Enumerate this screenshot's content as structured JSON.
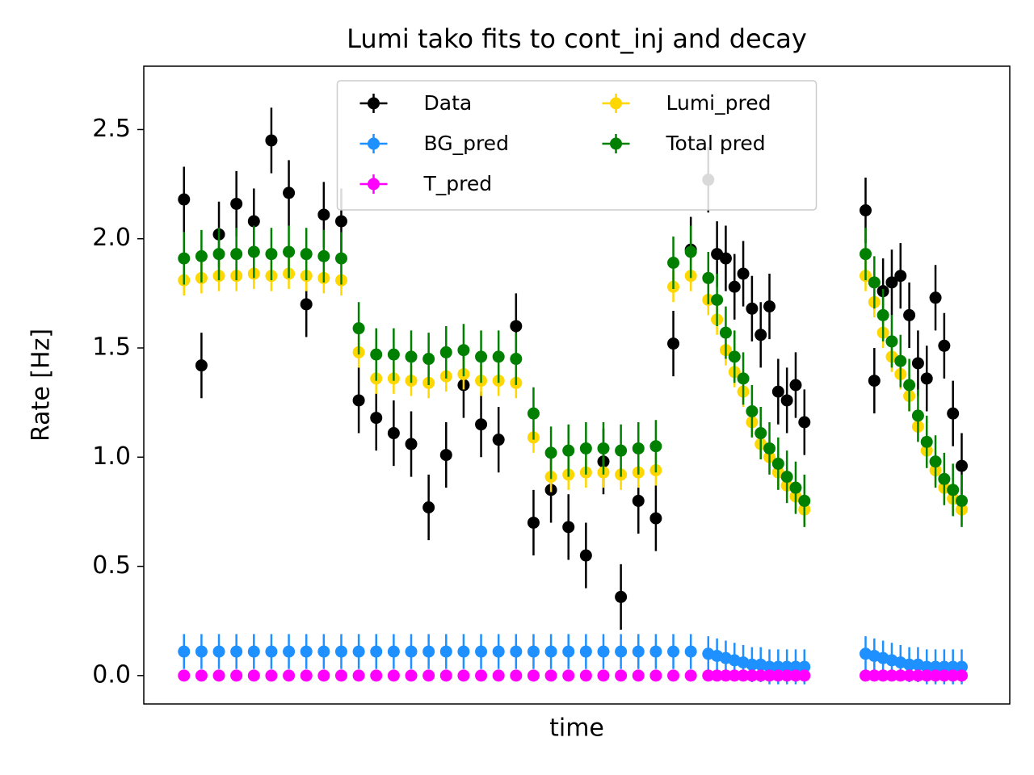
{
  "chart_data": {
    "type": "errorbar",
    "title": "Lumi tako fits to cont_inj and decay",
    "x_label": "time",
    "y_label": "Rate [Hz]",
    "xlim": [
      -4.6,
      94.5
    ],
    "ylim": [
      -0.13,
      2.79
    ],
    "yticks": [
      {
        "value": 0,
        "label": "0.0"
      },
      0.5,
      {
        "value": 1,
        "label": "1.0"
      },
      1.5,
      {
        "value": 2,
        "label": "2.0"
      },
      2.5
    ],
    "grid": false,
    "legend": "upper center",
    "legend_columns": 2,
    "x": [
      0,
      2,
      4,
      6,
      8,
      10,
      12,
      14,
      16,
      18,
      20,
      22,
      24,
      26,
      28,
      30,
      32,
      34,
      36,
      38,
      40,
      42,
      44,
      46,
      48,
      50,
      52,
      54,
      56,
      58,
      60,
      61,
      62,
      63,
      64,
      65,
      66,
      67,
      68,
      69,
      70,
      71,
      78,
      79,
      80,
      81,
      82,
      83,
      84,
      85,
      86,
      87,
      88,
      89
    ],
    "series": [
      {
        "name": "Data",
        "color": "#000000",
        "yerr": 0.15,
        "values": [
          2.18,
          1.42,
          2.02,
          2.16,
          2.08,
          2.45,
          2.21,
          1.7,
          2.11,
          2.08,
          1.26,
          1.18,
          1.11,
          1.06,
          0.77,
          1.01,
          1.33,
          1.15,
          1.08,
          1.6,
          0.7,
          0.85,
          0.68,
          0.55,
          0.98,
          0.36,
          0.8,
          0.72,
          1.52,
          1.95,
          2.27,
          1.93,
          1.91,
          1.78,
          1.84,
          1.68,
          1.56,
          1.69,
          1.3,
          1.26,
          1.33,
          1.16,
          2.13,
          1.35,
          1.76,
          1.8,
          1.83,
          1.65,
          1.43,
          1.36,
          1.73,
          1.51,
          1.2,
          0.96
        ]
      },
      {
        "name": "BG_pred",
        "color": "#1e90ff",
        "yerr": 0.08,
        "values": [
          0.11,
          0.11,
          0.11,
          0.11,
          0.11,
          0.11,
          0.11,
          0.11,
          0.11,
          0.11,
          0.11,
          0.11,
          0.11,
          0.11,
          0.11,
          0.11,
          0.11,
          0.11,
          0.11,
          0.11,
          0.11,
          0.11,
          0.11,
          0.11,
          0.11,
          0.11,
          0.11,
          0.11,
          0.11,
          0.11,
          0.1,
          0.09,
          0.08,
          0.07,
          0.06,
          0.05,
          0.05,
          0.04,
          0.04,
          0.04,
          0.04,
          0.04,
          0.1,
          0.09,
          0.08,
          0.07,
          0.06,
          0.05,
          0.05,
          0.04,
          0.04,
          0.04,
          0.04,
          0.04
        ]
      },
      {
        "name": "T_pred",
        "color": "#ff00ff",
        "yerr": 0,
        "values": [
          0,
          0,
          0,
          0,
          0,
          0,
          0,
          0,
          0,
          0,
          0,
          0,
          0,
          0,
          0,
          0,
          0,
          0,
          0,
          0,
          0,
          0,
          0,
          0,
          0,
          0,
          0,
          0,
          0,
          0,
          0,
          0,
          0,
          0,
          0,
          0,
          0,
          0,
          0,
          0,
          0,
          0,
          0,
          0,
          0,
          0,
          0,
          0,
          0,
          0,
          0,
          0,
          0,
          0
        ]
      },
      {
        "name": "Lumi_pred",
        "color": "#ffd700",
        "yerr": 0.07,
        "values": [
          1.81,
          1.82,
          1.83,
          1.83,
          1.84,
          1.83,
          1.84,
          1.83,
          1.82,
          1.81,
          1.48,
          1.36,
          1.36,
          1.35,
          1.34,
          1.37,
          1.38,
          1.35,
          1.35,
          1.34,
          1.09,
          0.91,
          0.92,
          0.93,
          0.93,
          0.92,
          0.93,
          0.94,
          1.78,
          1.83,
          1.72,
          1.63,
          1.49,
          1.39,
          1.3,
          1.16,
          1.06,
          1.0,
          0.93,
          0.87,
          0.82,
          0.76,
          1.83,
          1.71,
          1.57,
          1.46,
          1.38,
          1.28,
          1.14,
          1.03,
          0.94,
          0.86,
          0.81,
          0.76
        ]
      },
      {
        "name": "Total pred",
        "color": "#008000",
        "yerr": 0.12,
        "values": [
          1.91,
          1.92,
          1.93,
          1.93,
          1.94,
          1.93,
          1.94,
          1.93,
          1.92,
          1.91,
          1.59,
          1.47,
          1.47,
          1.46,
          1.45,
          1.48,
          1.49,
          1.46,
          1.46,
          1.45,
          1.2,
          1.02,
          1.03,
          1.04,
          1.04,
          1.03,
          1.04,
          1.05,
          1.89,
          1.94,
          1.82,
          1.72,
          1.57,
          1.46,
          1.36,
          1.21,
          1.11,
          1.04,
          0.97,
          0.91,
          0.86,
          0.8,
          1.93,
          1.8,
          1.65,
          1.53,
          1.44,
          1.33,
          1.19,
          1.07,
          0.98,
          0.9,
          0.85,
          0.8
        ]
      }
    ]
  }
}
